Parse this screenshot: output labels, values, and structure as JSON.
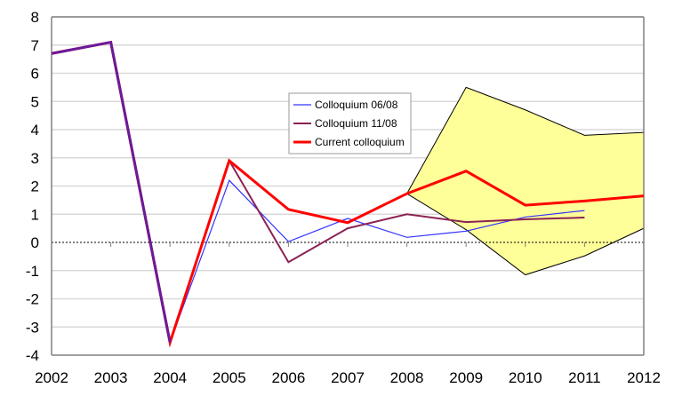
{
  "chart_data": {
    "type": "line",
    "title": "",
    "xlabel": "",
    "ylabel": "",
    "x": [
      2002,
      2003,
      2004,
      2005,
      2006,
      2007,
      2008,
      2009,
      2010,
      2011,
      2012
    ],
    "ylim": [
      -4,
      8
    ],
    "yticks": [
      8,
      7,
      6,
      5,
      4,
      3,
      2,
      1,
      0,
      -1,
      -2,
      -3,
      -4
    ],
    "grid": true,
    "legend_position": "inside-center",
    "series": [
      {
        "name": "Colloquium 06/08",
        "color": "#3333ff",
        "values": [
          6.7,
          7.1,
          -3.55,
          2.2,
          0.03,
          0.85,
          0.18,
          0.4,
          0.9,
          1.13,
          null
        ]
      },
      {
        "name": "Colloquium 11/08",
        "color": "#8b2252",
        "values": [
          6.7,
          7.1,
          -3.55,
          2.9,
          -0.7,
          0.5,
          1.0,
          0.72,
          0.82,
          0.88,
          null
        ]
      },
      {
        "name": "Current colloquium",
        "color": "#ff0000",
        "values": [
          6.7,
          7.1,
          -3.55,
          2.9,
          1.17,
          0.7,
          1.73,
          2.53,
          1.32,
          1.47,
          1.65
        ]
      }
    ],
    "band": {
      "name": "uncertainty range",
      "color": "#ffff99",
      "x": [
        2008,
        2009,
        2010,
        2011,
        2012
      ],
      "upper": [
        1.73,
        5.5,
        4.7,
        3.8,
        3.9
      ],
      "lower": [
        1.73,
        0.45,
        -1.15,
        -0.48,
        0.5
      ]
    }
  }
}
